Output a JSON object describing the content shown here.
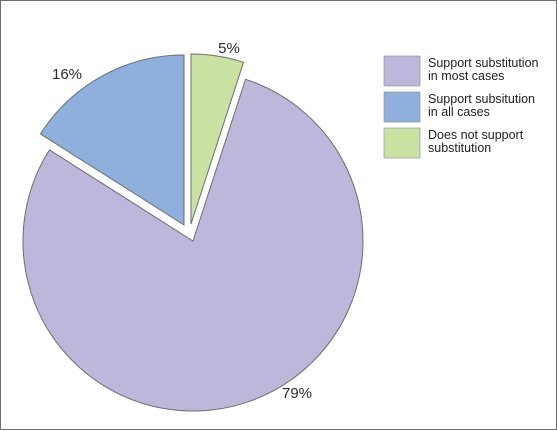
{
  "chart_data": {
    "type": "pie",
    "title": "",
    "slices": [
      {
        "label": "Support substitution in most cases",
        "legend_lines": [
          "Support substitution",
          "in most cases"
        ],
        "value": 79,
        "value_label": "79%",
        "color": "#bcb7db",
        "exploded": false
      },
      {
        "label": "Support subsitution in all cases",
        "legend_lines": [
          "Support subsitution",
          "in all cases"
        ],
        "value": 16,
        "value_label": "16%",
        "color": "#8fb0dc",
        "exploded": true
      },
      {
        "label": "Does not support substitution",
        "legend_lines": [
          "Does not support",
          "substitution"
        ],
        "value": 5,
        "value_label": "5%",
        "color": "#c9e2a2",
        "exploded": true
      }
    ],
    "legend_position": "top-right",
    "slice_border_color": "#6e6e6e"
  }
}
